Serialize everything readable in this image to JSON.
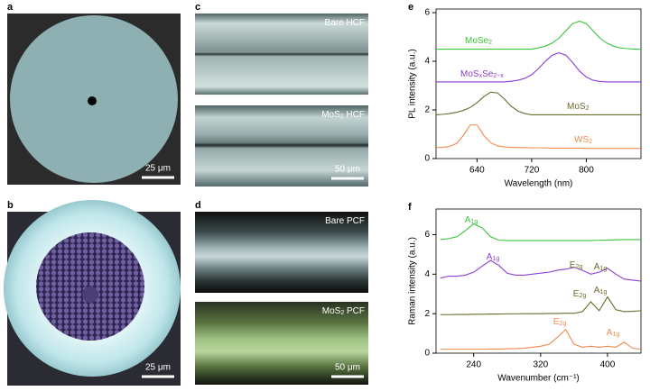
{
  "panels": {
    "a": {
      "label": "a",
      "scale_bar": "25 μm"
    },
    "b": {
      "label": "b",
      "scale_bar": "25 μm"
    },
    "c": {
      "label": "c",
      "images": [
        {
          "caption": [
            {
              "text": "Bare HCF"
            }
          ]
        },
        {
          "caption": [
            {
              "text": "MoS"
            },
            {
              "sub": "2"
            },
            {
              "text": " HCF"
            }
          ]
        }
      ],
      "scale_bar": "50 μm"
    },
    "d": {
      "label": "d",
      "images": [
        {
          "caption": [
            {
              "text": "Bare PCF"
            }
          ]
        },
        {
          "caption": [
            {
              "text": "MoS"
            },
            {
              "sub": "2"
            },
            {
              "text": " PCF"
            }
          ]
        }
      ],
      "scale_bar": "50 μm"
    }
  },
  "chart_data": [
    {
      "type": "line",
      "panel_label": "e",
      "xlabel": "Wavelength (nm)",
      "ylabel": "PL intensity (a.u.)",
      "x": [
        580,
        590,
        600,
        610,
        620,
        630,
        640,
        650,
        660,
        670,
        680,
        690,
        700,
        710,
        720,
        730,
        740,
        750,
        760,
        770,
        780,
        790,
        800,
        810,
        820,
        830,
        840,
        850,
        860,
        870,
        880
      ],
      "xlim": [
        580,
        880
      ],
      "xticks": [
        640,
        720,
        800
      ],
      "ylim": [
        0,
        6.15
      ],
      "yticks": [
        0,
        2,
        4,
        6
      ],
      "series": [
        {
          "name": [
            {
              "text": "MoSe"
            },
            {
              "sub": "2"
            }
          ],
          "color": "#3cc43c",
          "values": [
            4.5,
            4.5,
            4.5,
            4.5,
            4.5,
            4.5,
            4.5,
            4.5,
            4.5,
            4.5,
            4.5,
            4.5,
            4.5,
            4.5,
            4.5,
            4.55,
            4.62,
            4.75,
            4.95,
            5.25,
            5.55,
            5.65,
            5.55,
            5.25,
            4.95,
            4.75,
            4.62,
            4.55,
            4.52,
            4.5,
            4.5
          ]
        },
        {
          "name": [
            {
              "text": "MoS"
            },
            {
              "sub": "x"
            },
            {
              "text": "Se"
            },
            {
              "sub": "2−x"
            }
          ],
          "color": "#8a3fd6",
          "values": [
            3.15,
            3.15,
            3.15,
            3.15,
            3.15,
            3.15,
            3.15,
            3.15,
            3.15,
            3.15,
            3.15,
            3.18,
            3.22,
            3.3,
            3.45,
            3.7,
            4.0,
            4.25,
            4.35,
            4.25,
            3.95,
            3.6,
            3.35,
            3.22,
            3.17,
            3.15,
            3.15,
            3.15,
            3.15,
            3.15,
            3.15
          ]
        },
        {
          "name": [
            {
              "text": "MoS"
            },
            {
              "sub": "2"
            }
          ],
          "color": "#6b6b2a",
          "values": [
            1.8,
            1.82,
            1.85,
            1.9,
            1.98,
            2.1,
            2.3,
            2.55,
            2.73,
            2.7,
            2.45,
            2.15,
            1.95,
            1.85,
            1.8,
            1.8,
            1.8,
            1.8,
            1.8,
            1.8,
            1.8,
            1.8,
            1.8,
            1.8,
            1.8,
            1.8,
            1.8,
            1.8,
            1.8,
            1.8,
            1.8
          ]
        },
        {
          "name": [
            {
              "text": "WS"
            },
            {
              "sub": "2"
            }
          ],
          "color": "#f08a4b",
          "values": [
            0.45,
            0.46,
            0.5,
            0.62,
            0.95,
            1.38,
            1.38,
            0.95,
            0.65,
            0.52,
            0.48,
            0.46,
            0.45,
            0.45,
            0.44,
            0.44,
            0.44,
            0.43,
            0.43,
            0.43,
            0.43,
            0.43,
            0.42,
            0.42,
            0.42,
            0.42,
            0.42,
            0.42,
            0.42,
            0.42,
            0.42
          ]
        }
      ]
    },
    {
      "type": "line",
      "panel_label": "f",
      "xlabel": "Wavenumber (cm⁻¹)",
      "ylabel": "Raman intensity (a.u.)",
      "x": [
        200,
        210,
        220,
        230,
        240,
        250,
        260,
        270,
        280,
        290,
        300,
        310,
        320,
        330,
        340,
        350,
        360,
        370,
        380,
        390,
        400,
        410,
        420,
        430,
        440
      ],
      "xlim": [
        195,
        440
      ],
      "xticks": [
        240,
        320,
        400
      ],
      "ylim": [
        0,
        7.3
      ],
      "yticks": [
        0,
        2,
        4,
        6
      ],
      "series": [
        {
          "color": "#3cc43c",
          "values": [
            5.75,
            5.8,
            5.9,
            6.2,
            6.55,
            6.35,
            5.9,
            5.72,
            5.7,
            5.7,
            5.7,
            5.7,
            5.7,
            5.7,
            5.7,
            5.7,
            5.7,
            5.7,
            5.7,
            5.72,
            5.72,
            5.74,
            5.75,
            5.75,
            5.75
          ]
        },
        {
          "color": "#8a3fd6",
          "values": [
            3.8,
            3.9,
            3.9,
            3.95,
            4.1,
            4.4,
            4.7,
            4.45,
            4.05,
            3.95,
            3.95,
            4.0,
            4.05,
            4.1,
            4.2,
            4.25,
            4.35,
            4.2,
            4.0,
            4.1,
            4.3,
            4.0,
            3.75,
            3.7,
            3.65
          ]
        },
        {
          "color": "#6b6b2a",
          "values": [
            1.95,
            1.95,
            1.96,
            1.96,
            1.97,
            1.97,
            1.98,
            1.98,
            1.99,
            1.99,
            2.0,
            2.0,
            2.0,
            2.01,
            2.01,
            2.02,
            2.02,
            2.1,
            2.6,
            2.15,
            2.85,
            2.2,
            2.1,
            2.12,
            2.15
          ]
        },
        {
          "color": "#f08a4b",
          "values": [
            0.2,
            0.2,
            0.2,
            0.2,
            0.2,
            0.2,
            0.21,
            0.21,
            0.22,
            0.23,
            0.25,
            0.3,
            0.35,
            0.45,
            0.8,
            1.2,
            0.45,
            0.3,
            0.35,
            0.3,
            0.35,
            0.3,
            0.55,
            0.25,
            0.2
          ]
        }
      ],
      "annotations": [
        {
          "label": [
            {
              "text": "A"
            },
            {
              "sub": "1g"
            }
          ],
          "color": "#3cc43c"
        },
        {
          "label": [
            {
              "text": "A"
            },
            {
              "sub": "1g"
            }
          ],
          "color": "#8a3fd6"
        },
        {
          "label": [
            {
              "text": "E"
            },
            {
              "sub": "2g"
            }
          ],
          "color": "#6b6b2a"
        },
        {
          "label": [
            {
              "text": "A"
            },
            {
              "sub": "1g"
            }
          ],
          "color": "#6b6b2a"
        },
        {
          "label": [
            {
              "text": "E"
            },
            {
              "sub": "2g"
            }
          ],
          "color": "#6b6b2a"
        },
        {
          "label": [
            {
              "text": "A"
            },
            {
              "sub": "1g"
            }
          ],
          "color": "#6b6b2a"
        },
        {
          "label": [
            {
              "text": "E"
            },
            {
              "sub": "2g"
            }
          ],
          "color": "#f08a4b"
        },
        {
          "label": [
            {
              "text": "A"
            },
            {
              "sub": "1g"
            }
          ],
          "color": "#f08a4b"
        }
      ]
    }
  ]
}
